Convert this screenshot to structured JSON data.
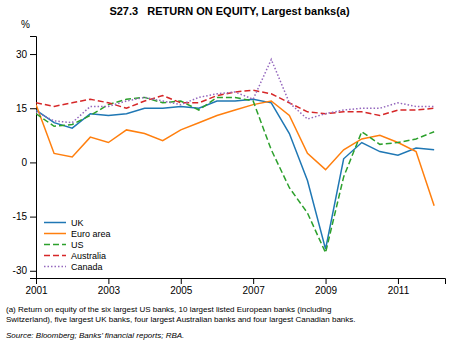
{
  "chart_data": {
    "type": "line",
    "title": "S27.3   RETURN ON EQUITY, Largest banks(a)",
    "y_label": "%",
    "footnotes": [
      "(a) Return on equity of the six largest US banks, 10 largest listed European banks (including",
      "Switzerland), five largest UK banks, four largest Australian banks and four largest Canadian banks."
    ],
    "source": "Source: Bloomberg; Banks’ financial reports; RBA.",
    "x": [
      2001.0,
      2001.5,
      2002.0,
      2002.5,
      2003.0,
      2003.5,
      2004.0,
      2004.5,
      2005.0,
      2005.5,
      2006.0,
      2006.5,
      2007.0,
      2007.5,
      2008.0,
      2008.5,
      2009.0,
      2009.5,
      2010.0,
      2010.5,
      2011.0,
      2011.5,
      2012.0
    ],
    "xlim": [
      2001.0,
      2012.3
    ],
    "xticks": [
      2001,
      2003,
      2005,
      2007,
      2009,
      2011
    ],
    "ylim": [
      -32,
      35
    ],
    "yticks": [
      -30,
      -15,
      0,
      15,
      30
    ],
    "grid": false,
    "legend": "lower left",
    "series": [
      {
        "name": "UK",
        "line_style": "solid",
        "values": [
          14.5,
          11.0,
          9.5,
          13.5,
          13.0,
          13.5,
          15.0,
          15.0,
          15.5,
          15.0,
          17.0,
          17.0,
          17.5,
          16.5,
          8.0,
          -5.0,
          -24.0,
          1.0,
          5.5,
          3.0,
          2.0,
          4.0,
          3.5
        ]
      },
      {
        "name": "Euro area",
        "line_style": "solid",
        "values": [
          16.0,
          2.5,
          1.5,
          7.0,
          5.5,
          9.0,
          8.0,
          6.0,
          9.0,
          11.0,
          13.0,
          14.5,
          16.0,
          17.0,
          13.0,
          2.5,
          -2.0,
          3.5,
          6.5,
          7.5,
          5.5,
          3.0,
          -12.0
        ]
      },
      {
        "name": "US",
        "line_style": "dashed",
        "values": [
          13.5,
          10.0,
          10.5,
          13.0,
          16.0,
          17.5,
          18.0,
          16.5,
          17.0,
          14.5,
          18.0,
          18.0,
          17.0,
          3.5,
          -7.0,
          -14.0,
          -25.0,
          -4.0,
          8.5,
          5.0,
          5.5,
          6.5,
          8.5
        ]
      },
      {
        "name": "Australia",
        "line_style": "dashed",
        "values": [
          16.5,
          15.5,
          16.5,
          17.5,
          16.5,
          15.0,
          17.0,
          18.5,
          16.5,
          16.5,
          18.5,
          19.5,
          20.0,
          19.0,
          16.5,
          14.0,
          13.5,
          14.0,
          14.0,
          13.0,
          14.5,
          14.5,
          15.0
        ]
      },
      {
        "name": "Canada",
        "line_style": "dotted",
        "values": [
          14.0,
          11.5,
          11.0,
          15.5,
          15.5,
          17.0,
          18.0,
          17.0,
          16.0,
          18.0,
          19.0,
          19.5,
          17.5,
          28.5,
          16.5,
          12.0,
          13.5,
          14.5,
          15.0,
          15.0,
          16.5,
          15.5,
          15.5
        ]
      }
    ]
  }
}
